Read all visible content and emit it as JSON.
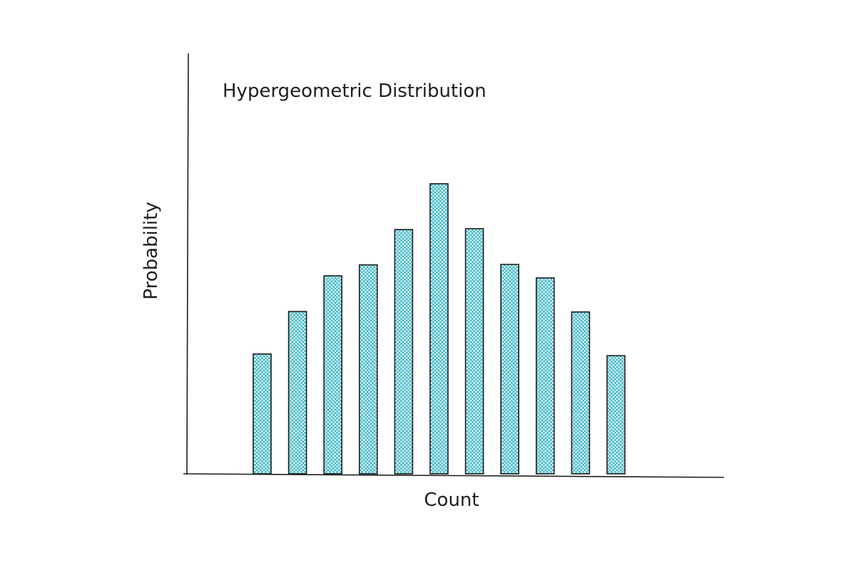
{
  "chart_data": {
    "type": "bar",
    "title": "Hypergeometric Distribution",
    "xlabel": "Count",
    "ylabel": "Probability",
    "values": [
      28.5,
      38.6,
      47.1,
      49.7,
      58.1,
      69.0,
      58.3,
      49.8,
      46.6,
      38.5,
      28.1
    ],
    "ylim": [
      0,
      100
    ],
    "grid": false,
    "tick_labels": false,
    "style": "hand-drawn",
    "colors": {
      "bar_fill": "#3ab8c8",
      "bar_stroke": "#1e1e1e",
      "axis": "#1e1e1e"
    }
  }
}
